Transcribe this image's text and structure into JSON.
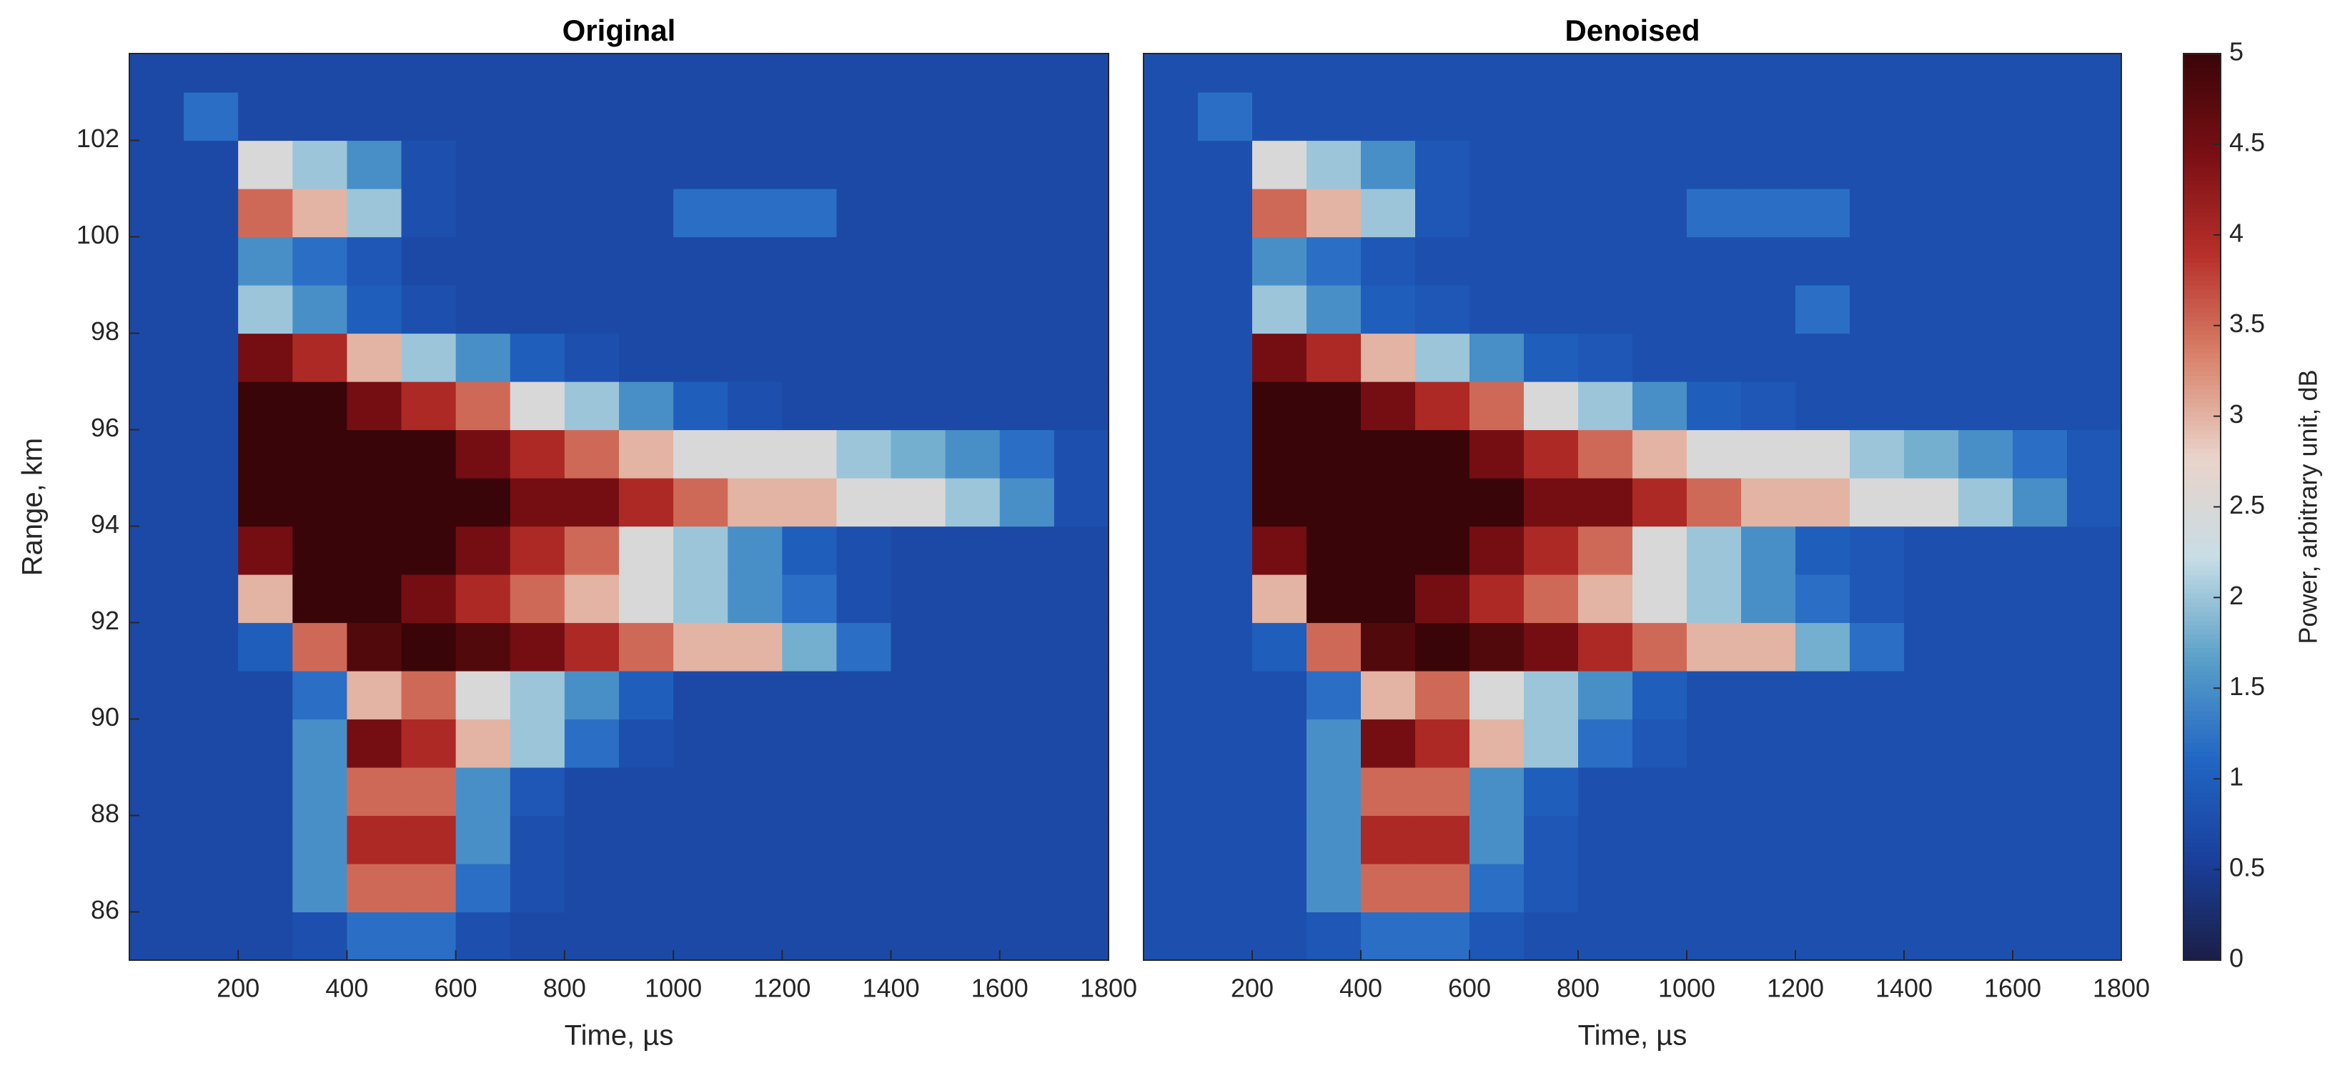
{
  "chart_data": [
    {
      "type": "heatmap",
      "title": "Original",
      "xlabel": "Time, µs",
      "ylabel": "Range, km",
      "xbins": [
        0,
        100,
        200,
        300,
        400,
        500,
        600,
        700,
        800,
        900,
        1000,
        1100,
        1200,
        1300,
        1400,
        1500,
        1600,
        1700,
        1800
      ],
      "ybins": [
        85,
        86,
        87,
        88,
        89,
        90,
        91,
        92,
        93,
        94,
        95,
        96,
        97,
        98,
        99,
        100,
        101,
        102,
        103,
        104
      ],
      "z": [
        [
          0.7,
          0.7,
          0.7,
          0.8,
          1.2,
          1.2,
          0.8,
          0.7,
          0.7,
          0.7,
          0.7,
          0.7,
          0.7,
          0.7,
          0.7,
          0.7,
          0.7,
          0.7
        ],
        [
          0.7,
          0.7,
          0.7,
          1.5,
          3.5,
          3.5,
          1.2,
          0.8,
          0.7,
          0.7,
          0.7,
          0.7,
          0.7,
          0.7,
          0.7,
          0.7,
          0.7,
          0.7
        ],
        [
          0.7,
          0.7,
          0.7,
          1.5,
          4,
          4,
          1.5,
          0.8,
          0.7,
          0.7,
          0.7,
          0.7,
          0.7,
          0.7,
          0.7,
          0.7,
          0.7,
          0.7
        ],
        [
          0.7,
          0.7,
          0.7,
          1.5,
          3.5,
          3.5,
          1.5,
          0.9,
          0.7,
          0.7,
          0.7,
          0.7,
          0.7,
          0.7,
          0.7,
          0.7,
          0.7,
          0.7
        ],
        [
          0.7,
          0.7,
          0.7,
          1.5,
          4.5,
          4,
          3,
          2,
          1.2,
          0.8,
          0.7,
          0.7,
          0.7,
          0.7,
          0.7,
          0.7,
          0.7,
          0.7
        ],
        [
          0.7,
          0.7,
          0.7,
          1.2,
          3,
          3.5,
          2.5,
          2,
          1.5,
          1,
          0.7,
          0.7,
          0.7,
          0.7,
          0.7,
          0.7,
          0.7,
          0.7
        ],
        [
          0.7,
          0.7,
          1,
          3.5,
          4.8,
          5,
          4.8,
          4.5,
          4,
          3.5,
          3,
          3,
          1.8,
          1.2,
          0.7,
          0.7,
          0.7,
          0.7
        ],
        [
          0.7,
          0.7,
          3,
          5,
          5,
          4.5,
          4,
          3.5,
          3,
          2.5,
          2,
          1.5,
          1.2,
          0.8,
          0.7,
          0.7,
          0.7,
          0.7
        ],
        [
          0.7,
          0.7,
          4.5,
          5,
          5,
          5,
          4.5,
          4,
          3.5,
          2.5,
          2,
          1.5,
          1,
          0.8,
          0.7,
          0.7,
          0.7,
          0.7
        ],
        [
          0.7,
          0.7,
          5,
          5,
          5,
          5,
          5,
          4.5,
          4.5,
          4,
          3.5,
          3,
          3,
          2.5,
          2.5,
          2,
          1.5,
          0.8
        ],
        [
          0.7,
          0.7,
          5,
          5,
          5,
          5,
          4.5,
          4,
          3.5,
          3,
          2.5,
          2.5,
          2.5,
          2,
          1.8,
          1.5,
          1.2,
          0.8
        ],
        [
          0.7,
          0.7,
          5,
          5,
          4.5,
          4,
          3.5,
          2.5,
          2,
          1.5,
          1,
          0.8,
          0.7,
          0.7,
          0.7,
          0.7,
          0.7,
          0.7
        ],
        [
          0.7,
          0.7,
          4.5,
          4,
          3,
          2,
          1.5,
          1,
          0.8,
          0.7,
          0.7,
          0.7,
          0.7,
          0.7,
          0.7,
          0.7,
          0.7,
          0.7
        ],
        [
          0.7,
          0.7,
          2,
          1.5,
          1,
          0.8,
          0.7,
          0.7,
          0.7,
          0.7,
          0.7,
          0.7,
          0.7,
          0.7,
          0.7,
          0.7,
          0.7,
          0.7
        ],
        [
          0.7,
          0.7,
          1.5,
          1.2,
          0.9,
          0.7,
          0.7,
          0.7,
          0.7,
          0.7,
          0.7,
          0.7,
          0.7,
          0.7,
          0.7,
          0.7,
          0.7,
          0.7
        ],
        [
          0.7,
          0.7,
          3.5,
          3,
          2,
          0.8,
          0.7,
          0.7,
          0.7,
          0.7,
          1.2,
          1.2,
          1.2,
          0.7,
          0.7,
          0.7,
          0.7,
          0.7
        ],
        [
          0.7,
          0.7,
          2.5,
          2,
          1.5,
          0.8,
          0.7,
          0.7,
          0.7,
          0.7,
          0.7,
          0.7,
          0.7,
          0.7,
          0.7,
          0.7,
          0.7,
          0.7
        ],
        [
          0.7,
          1.2,
          0.7,
          0.7,
          0.7,
          0.7,
          0.7,
          0.7,
          0.7,
          0.7,
          0.7,
          0.7,
          0.7,
          0.7,
          0.7,
          0.7,
          0.7,
          0.7
        ],
        [
          0.7,
          0.7,
          0.7,
          0.7,
          0.7,
          0.7,
          0.7,
          0.7,
          0.7,
          0.7,
          0.7,
          0.7,
          0.7,
          0.7,
          0.7,
          0.7,
          0.7,
          0.7
        ]
      ],
      "xlim": [
        0,
        1800
      ],
      "xticks": [
        200,
        400,
        600,
        800,
        1000,
        1200,
        1400,
        1600,
        1800
      ],
      "ylim": [
        85,
        103.8
      ],
      "yticks": [
        86,
        88,
        90,
        92,
        94,
        96,
        98,
        100,
        102
      ],
      "clim": [
        0,
        5
      ],
      "colormap": [
        "#1b1e45",
        "#1a3f9c",
        "#2166c4",
        "#5aa0c8",
        "#c8dde6",
        "#e9d3c9",
        "#d9826a",
        "#b8302b",
        "#7a0f14",
        "#3a0508"
      ]
    },
    {
      "type": "heatmap",
      "title": "Denoised",
      "xlabel": "Time, µs",
      "xbins": [
        0,
        100,
        200,
        300,
        400,
        500,
        600,
        700,
        800,
        900,
        1000,
        1100,
        1200,
        1300,
        1400,
        1500,
        1600,
        1700,
        1800
      ],
      "ybins": [
        85,
        86,
        87,
        88,
        89,
        90,
        91,
        92,
        93,
        94,
        95,
        96,
        97,
        98,
        99,
        100,
        101,
        102,
        103,
        104
      ],
      "z": [
        [
          0.8,
          0.8,
          0.8,
          0.9,
          1.2,
          1.2,
          0.9,
          0.8,
          0.8,
          0.8,
          0.8,
          0.8,
          0.8,
          0.8,
          0.8,
          0.8,
          0.8,
          0.8
        ],
        [
          0.8,
          0.8,
          0.8,
          1.5,
          3.5,
          3.5,
          1.2,
          0.9,
          0.8,
          0.8,
          0.8,
          0.8,
          0.8,
          0.8,
          0.8,
          0.8,
          0.8,
          0.8
        ],
        [
          0.8,
          0.8,
          0.8,
          1.5,
          4,
          4,
          1.5,
          0.9,
          0.8,
          0.8,
          0.8,
          0.8,
          0.8,
          0.8,
          0.8,
          0.8,
          0.8,
          0.8
        ],
        [
          0.8,
          0.8,
          0.8,
          1.5,
          3.5,
          3.5,
          1.5,
          1,
          0.8,
          0.8,
          0.8,
          0.8,
          0.8,
          0.8,
          0.8,
          0.8,
          0.8,
          0.8
        ],
        [
          0.8,
          0.8,
          0.8,
          1.5,
          4.5,
          4,
          3,
          2,
          1.2,
          0.9,
          0.8,
          0.8,
          0.8,
          0.8,
          0.8,
          0.8,
          0.8,
          0.8
        ],
        [
          0.8,
          0.8,
          0.8,
          1.2,
          3,
          3.5,
          2.5,
          2,
          1.5,
          1,
          0.8,
          0.8,
          0.8,
          0.8,
          0.8,
          0.8,
          0.8,
          0.8
        ],
        [
          0.8,
          0.8,
          1,
          3.5,
          4.8,
          5,
          4.8,
          4.5,
          4,
          3.5,
          3,
          3,
          1.8,
          1.2,
          0.8,
          0.8,
          0.8,
          0.8
        ],
        [
          0.8,
          0.8,
          3,
          5,
          5,
          4.5,
          4,
          3.5,
          3,
          2.5,
          2,
          1.5,
          1.2,
          0.9,
          0.8,
          0.8,
          0.8,
          0.8
        ],
        [
          0.8,
          0.8,
          4.5,
          5,
          5,
          5,
          4.5,
          4,
          3.5,
          2.5,
          2,
          1.5,
          1,
          0.9,
          0.8,
          0.8,
          0.8,
          0.8
        ],
        [
          0.8,
          0.8,
          5,
          5,
          5,
          5,
          5,
          4.5,
          4.5,
          4,
          3.5,
          3,
          3,
          2.5,
          2.5,
          2,
          1.5,
          0.9
        ],
        [
          0.8,
          0.8,
          5,
          5,
          5,
          5,
          4.5,
          4,
          3.5,
          3,
          2.5,
          2.5,
          2.5,
          2,
          1.8,
          1.5,
          1.2,
          0.9
        ],
        [
          0.8,
          0.8,
          5,
          5,
          4.5,
          4,
          3.5,
          2.5,
          2,
          1.5,
          1,
          0.9,
          0.8,
          0.8,
          0.8,
          0.8,
          0.8,
          0.8
        ],
        [
          0.8,
          0.8,
          4.5,
          4,
          3,
          2,
          1.5,
          1,
          0.9,
          0.8,
          0.8,
          0.8,
          0.8,
          0.8,
          0.8,
          0.8,
          0.8,
          0.8
        ],
        [
          0.8,
          0.8,
          2,
          1.5,
          1,
          0.9,
          0.8,
          0.8,
          0.8,
          0.8,
          0.8,
          0.8,
          1.2,
          0.8,
          0.8,
          0.8,
          0.8,
          0.8
        ],
        [
          0.8,
          0.8,
          1.5,
          1.2,
          0.9,
          0.8,
          0.8,
          0.8,
          0.8,
          0.8,
          0.8,
          0.8,
          0.8,
          0.8,
          0.8,
          0.8,
          0.8,
          0.8
        ],
        [
          0.8,
          0.8,
          3.5,
          3,
          2,
          0.9,
          0.8,
          0.8,
          0.8,
          0.8,
          1.2,
          1.2,
          1.2,
          0.8,
          0.8,
          0.8,
          0.8,
          0.8
        ],
        [
          0.8,
          0.8,
          2.5,
          2,
          1.5,
          0.9,
          0.8,
          0.8,
          0.8,
          0.8,
          0.8,
          0.8,
          0.8,
          0.8,
          0.8,
          0.8,
          0.8,
          0.8
        ],
        [
          0.8,
          1.2,
          0.8,
          0.8,
          0.8,
          0.8,
          0.8,
          0.8,
          0.8,
          0.8,
          0.8,
          0.8,
          0.8,
          0.8,
          0.8,
          0.8,
          0.8,
          0.8
        ],
        [
          0.8,
          0.8,
          0.8,
          0.8,
          0.8,
          0.8,
          0.8,
          0.8,
          0.8,
          0.8,
          0.8,
          0.8,
          0.8,
          0.8,
          0.8,
          0.8,
          0.8,
          0.8
        ]
      ],
      "xlim": [
        0,
        1800
      ],
      "xticks": [
        200,
        400,
        600,
        800,
        1000,
        1200,
        1400,
        1600,
        1800
      ],
      "ylim": [
        85,
        103.8
      ],
      "clim": [
        0,
        5
      ],
      "colormap": [
        "#1b1e45",
        "#1a3f9c",
        "#2166c4",
        "#5aa0c8",
        "#c8dde6",
        "#e9d3c9",
        "#d9826a",
        "#b8302b",
        "#7a0f14",
        "#3a0508"
      ],
      "colorbar": {
        "label": "Power, arbitrary unit, dB",
        "ticks": [
          0,
          0.5,
          1,
          1.5,
          2,
          2.5,
          3,
          3.5,
          4,
          4.5,
          5
        ]
      }
    }
  ]
}
